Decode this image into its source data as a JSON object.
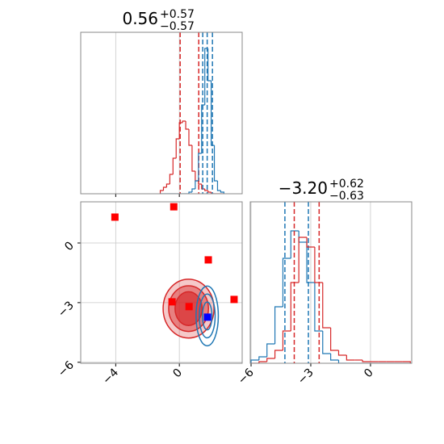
{
  "chart_data": [
    {
      "type": "histogram",
      "title": {
        "value": "0.56",
        "upper": "+0.57",
        "lower": "−0.57"
      },
      "xlim": [
        -6.2,
        3.95
      ],
      "ylim": [
        0,
        1
      ],
      "xticks": [
        -4,
        0
      ],
      "show_tick_labels": false,
      "grid": true,
      "bins": [
        -1.2,
        -1.0,
        -0.8,
        -0.6,
        -0.4,
        -0.2,
        0.0,
        0.2,
        0.4,
        0.6,
        0.8,
        1.0,
        1.2,
        1.4,
        1.6,
        1.8,
        2.0,
        2.2,
        2.4,
        2.6,
        2.8
      ],
      "series": [
        {
          "color": "#d62728",
          "values": [
            0.02,
            0.04,
            0.06,
            0.12,
            0.22,
            0.34,
            0.44,
            0.45,
            0.4,
            0.3,
            0.14,
            0.08,
            0.06,
            0.03,
            0.02,
            0.01,
            0,
            0,
            0,
            0
          ],
          "quantiles": [
            0.05,
            1.22
          ]
        },
        {
          "color": "#1f77b4",
          "values": [
            0,
            0,
            0,
            0,
            0,
            0,
            0,
            0,
            0,
            0.01,
            0.03,
            0.08,
            0.25,
            0.55,
            0.9,
            0.7,
            0.3,
            0.08,
            0.02,
            0.01
          ],
          "quantiles": [
            1.47,
            1.75,
            2.08
          ]
        }
      ]
    },
    {
      "type": "scatter",
      "xlim": [
        -6.2,
        3.95
      ],
      "ylim": [
        -6.05,
        2.07
      ],
      "xticks": [
        {
          "value": -4,
          "label": "−4"
        },
        0
      ],
      "yticks": [
        {
          "value": -6,
          "label": "−6"
        },
        {
          "value": -3,
          "label": "−3"
        },
        0
      ],
      "show_tick_labels": true,
      "grid": true,
      "contours": [
        {
          "color": "#d62728",
          "center": [
            0.58,
            -3.3
          ],
          "radii": [
            [
              1.6,
              1.48
            ],
            [
              1.25,
              1.15
            ],
            [
              0.85,
              0.85
            ]
          ]
        },
        {
          "color": "#1f77b4",
          "center": [
            1.75,
            -3.67
          ],
          "radii": [
            [
              0.7,
              1.5
            ],
            [
              0.5,
              1.1
            ],
            [
              0.3,
              0.7
            ]
          ]
        }
      ],
      "series": [
        {
          "color": "#ff0000",
          "x": [
            -4.05,
            -0.35,
            1.82,
            3.44,
            -0.46,
            0.61
          ],
          "y": [
            1.3,
            1.82,
            -0.85,
            -2.84,
            -2.96,
            -3.2
          ]
        },
        {
          "color": "#0000ff",
          "x": [
            1.77
          ],
          "y": [
            -3.73
          ]
        }
      ]
    },
    {
      "type": "histogram",
      "title": {
        "value": "−3.20",
        "upper": "+0.62",
        "lower": "−0.63"
      },
      "xlim": [
        -6.04,
        2.07
      ],
      "ylim": [
        0,
        1
      ],
      "xticks": [
        {
          "value": -6,
          "label": "−6"
        },
        {
          "value": -3,
          "label": "−3"
        },
        0
      ],
      "show_tick_labels": true,
      "grid": true,
      "bins": [
        -6.0,
        -5.6,
        -5.2,
        -4.8,
        -4.4,
        -4.0,
        -3.6,
        -3.2,
        -2.8,
        -2.4,
        -2.0,
        -1.6,
        -1.2,
        -0.8,
        -0.4,
        0.0,
        0.4,
        0.8,
        1.2,
        1.6,
        2.0
      ],
      "series": [
        {
          "color": "#1f77b4",
          "values": [
            0.02,
            0.04,
            0.12,
            0.35,
            0.65,
            0.82,
            0.75,
            0.5,
            0.2,
            0.06,
            0.02,
            0,
            0,
            0,
            0,
            0,
            0,
            0,
            0,
            0
          ],
          "quantiles": [
            -4.3,
            -3.12
          ]
        },
        {
          "color": "#d62728",
          "values": [
            0,
            0.01,
            0.03,
            0.08,
            0.2,
            0.5,
            0.78,
            0.72,
            0.5,
            0.22,
            0.08,
            0.05,
            0.02,
            0.02,
            0.01,
            0.01,
            0.01,
            0.01,
            0.01,
            0.01
          ],
          "quantiles": [
            -3.83,
            -2.58
          ]
        }
      ]
    }
  ]
}
